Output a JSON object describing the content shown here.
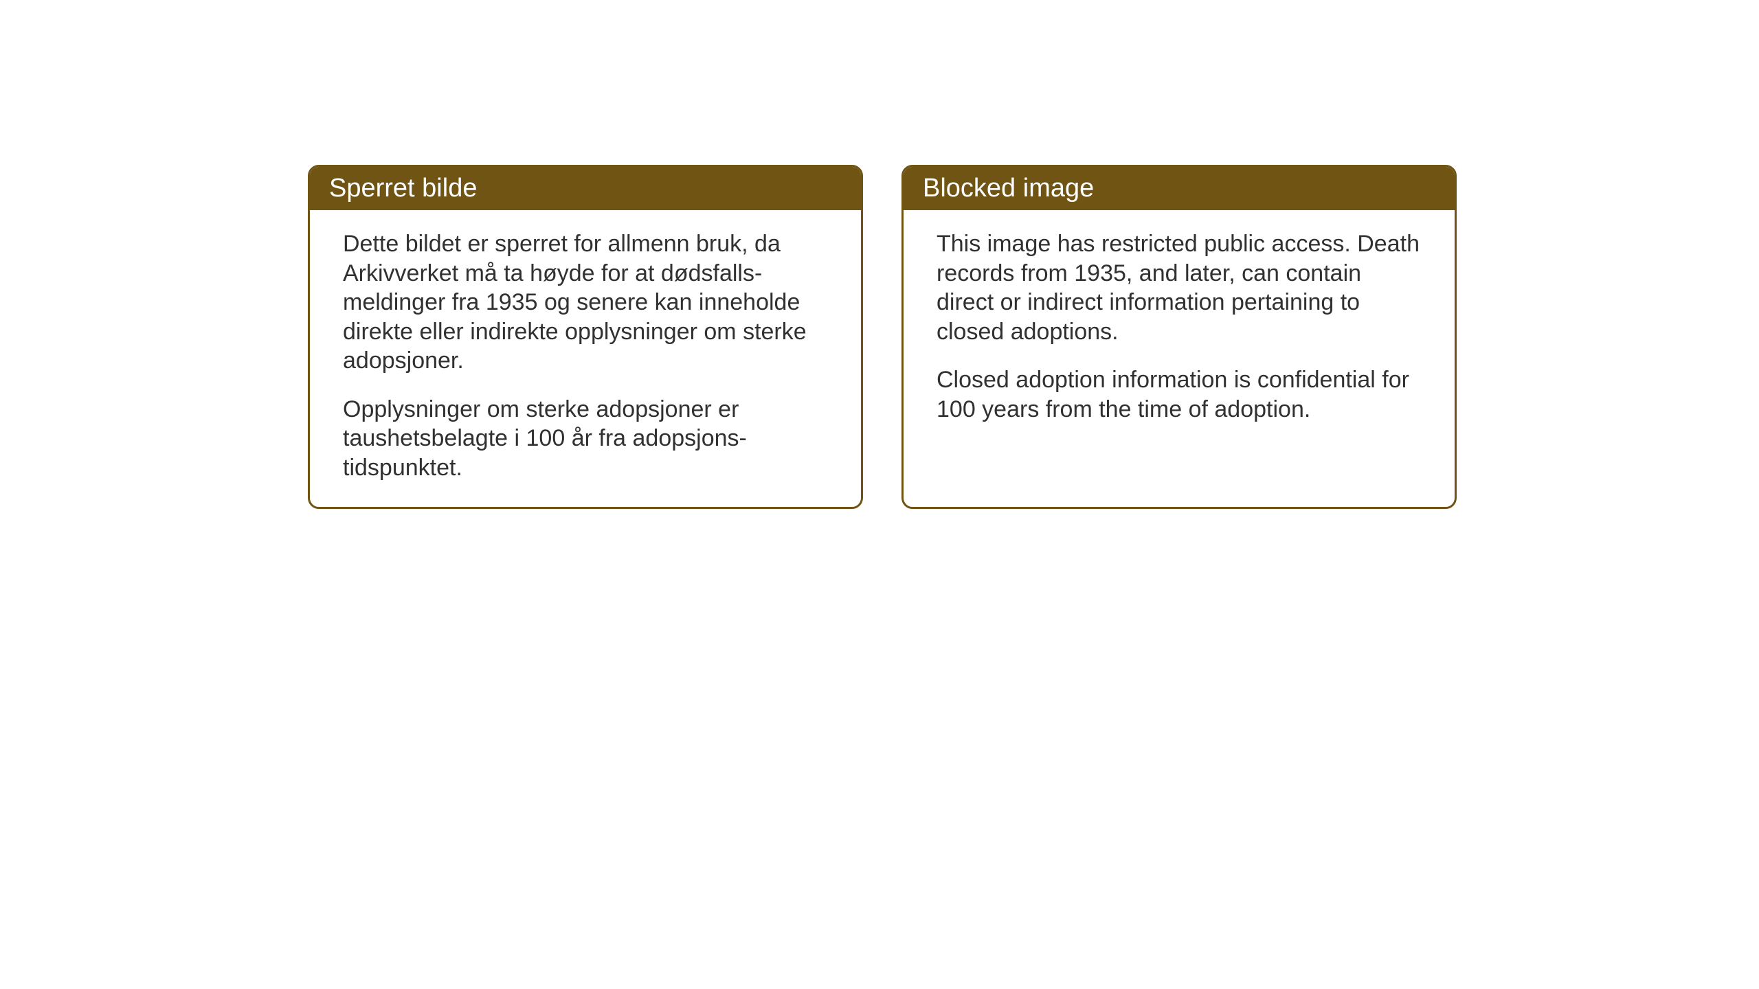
{
  "layout": {
    "background_color": "#ffffff",
    "box_border_color": "#705413",
    "header_background_color": "#705413",
    "header_text_color": "#ffffff",
    "body_text_color": "#313131",
    "border_radius": 16,
    "border_width": 3,
    "header_fontsize": 38,
    "body_fontsize": 34
  },
  "left_box": {
    "title": "Sperret bilde",
    "paragraph1": "Dette bildet er sperret for allmenn bruk, da Arkivverket må ta høyde for at dødsfalls-meldinger fra 1935 og senere kan inneholde direkte eller indirekte opplysninger om sterke adopsjoner.",
    "paragraph2": "Opplysninger om sterke adopsjoner er taushetsbelagte i 100 år fra adopsjons-tidspunktet."
  },
  "right_box": {
    "title": "Blocked image",
    "paragraph1": "This image has restricted public access. Death records from 1935, and later, can contain direct or indirect information pertaining to closed adoptions.",
    "paragraph2": "Closed adoption information is confidential for 100 years from the time of adoption."
  }
}
